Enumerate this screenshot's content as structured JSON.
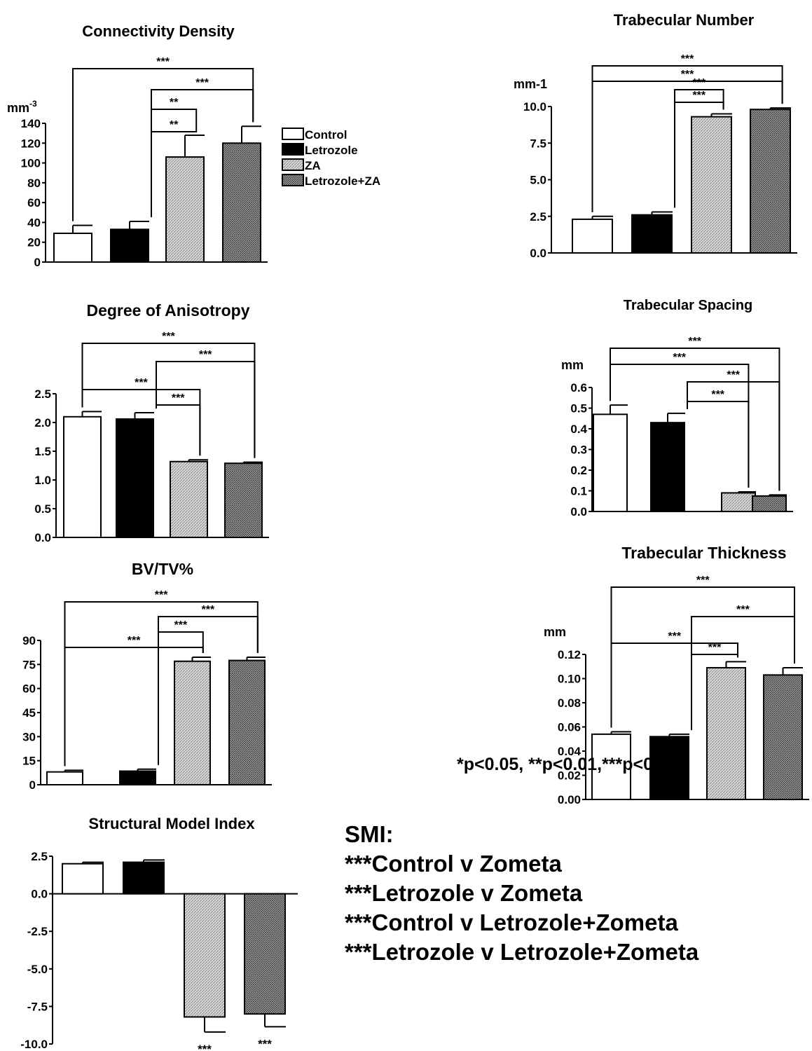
{
  "legend": [
    {
      "label": "Control",
      "fill": "white"
    },
    {
      "label": "Letrozole",
      "fill": "black"
    },
    {
      "label": "ZA",
      "fill": "light"
    },
    {
      "label": "Letrozole+ZA",
      "fill": "dark"
    }
  ],
  "colors": {
    "bar_black": "#000000",
    "bar_light": "#bdbdbd",
    "bar_dark": "#8a8a8a",
    "bar_white": "#ffffff"
  },
  "notes": {
    "smi_heading": "SMI:",
    "smi_lines": [
      "***Control v Zometa",
      "***Letrozole v Zometa",
      "***Control v Letrozole+Zometa",
      "***Letrozole v Letrozole+Zometa"
    ],
    "pvalue_note": "*p<0.05, **p<0.01,***p<0.001"
  },
  "chart_data": [
    {
      "id": "conn",
      "type": "bar",
      "title": "Connectivity Density",
      "ylabel": "mm-3",
      "ylim": [
        0,
        140
      ],
      "ticks": [
        "0",
        "20",
        "40",
        "60",
        "80",
        "100",
        "120",
        "140"
      ],
      "categories": [
        "Control",
        "Letrozole",
        "ZA",
        "Letrozole+ZA"
      ],
      "values": [
        29,
        33,
        106,
        120
      ],
      "errors": [
        8,
        8,
        22,
        17
      ],
      "sig": [
        {
          "from": 0,
          "to": 3,
          "label": "***"
        },
        {
          "from": 1,
          "to": 3,
          "label": "***"
        },
        {
          "from": 1,
          "to": 2,
          "label": "**"
        },
        {
          "from": 1,
          "to": 2,
          "label": "**"
        }
      ]
    },
    {
      "id": "trabnum",
      "type": "bar",
      "title": "Trabecular Number",
      "ylabel": "mm-1",
      "ylim": [
        0,
        10
      ],
      "ticks": [
        "0.0",
        "2.5",
        "5.0",
        "7.5",
        "10.0"
      ],
      "categories": [
        "Control",
        "Letrozole",
        "ZA",
        "Letrozole+ZA"
      ],
      "values": [
        2.3,
        2.6,
        9.3,
        9.8
      ],
      "errors": [
        0.2,
        0.2,
        0.2,
        0.1
      ],
      "sig": [
        {
          "from": 0,
          "to": 3,
          "label": "***"
        },
        {
          "from": 0,
          "to": 3,
          "label": "***"
        },
        {
          "from": 1,
          "to": 2,
          "label": "***"
        },
        {
          "from": 1,
          "to": 2,
          "label": "***"
        }
      ]
    },
    {
      "id": "doa",
      "type": "bar",
      "title": "Degree of Anisotropy",
      "ylabel": "",
      "ylim": [
        0,
        2.5
      ],
      "ticks": [
        "0.0",
        "0.5",
        "1.0",
        "1.5",
        "2.0",
        "2.5"
      ],
      "categories": [
        "Control",
        "Letrozole",
        "ZA",
        "Letrozole+ZA"
      ],
      "values": [
        2.1,
        2.06,
        1.32,
        1.29
      ],
      "errors": [
        0.09,
        0.11,
        0.03,
        0.02
      ],
      "sig": [
        {
          "from": 0,
          "to": 3,
          "label": "***"
        },
        {
          "from": 1,
          "to": 3,
          "label": "***"
        },
        {
          "from": 0,
          "to": 2,
          "label": "***"
        },
        {
          "from": 1,
          "to": 2,
          "label": "***"
        }
      ]
    },
    {
      "id": "trabspace",
      "type": "bar",
      "title": "Trabecular Spacing",
      "ylabel": "mm",
      "ylim": [
        0,
        0.6
      ],
      "ticks": [
        "0.0",
        "0.1",
        "0.2",
        "0.3",
        "0.4",
        "0.5",
        "0.6"
      ],
      "categories": [
        "Control",
        "Letrozole",
        "ZA",
        "Letrozole+ZA"
      ],
      "values": [
        0.47,
        0.43,
        0.09,
        0.075
      ],
      "errors": [
        0.045,
        0.045,
        0.005,
        0.005
      ],
      "sig": [
        {
          "from": 0,
          "to": 3,
          "label": "***"
        },
        {
          "from": 0,
          "to": 2,
          "label": "***"
        },
        {
          "from": 1,
          "to": 3,
          "label": "***"
        },
        {
          "from": 1,
          "to": 2,
          "label": "***"
        }
      ]
    },
    {
      "id": "bvtv",
      "type": "bar",
      "title": "BV/TV%",
      "ylabel": "",
      "ylim": [
        0,
        90
      ],
      "ticks": [
        "0",
        "15",
        "30",
        "45",
        "60",
        "75",
        "90"
      ],
      "categories": [
        "Control",
        "Letrozole",
        "ZA",
        "Letrozole+ZA"
      ],
      "values": [
        8,
        8.5,
        77,
        77.5
      ],
      "errors": [
        1,
        1.2,
        2.5,
        2
      ],
      "sig": [
        {
          "from": 0,
          "to": 3,
          "label": "***"
        },
        {
          "from": 1,
          "to": 3,
          "label": "***"
        },
        {
          "from": 1,
          "to": 2,
          "label": "***"
        },
        {
          "from": 0,
          "to": 2,
          "label": "***"
        }
      ]
    },
    {
      "id": "trabthick",
      "type": "bar",
      "title": "Trabecular Thickness",
      "ylabel": "mm",
      "ylim": [
        0,
        0.12
      ],
      "ticks": [
        "0.00",
        "0.02",
        "0.04",
        "0.06",
        "0.08",
        "0.10",
        "0.12"
      ],
      "categories": [
        "Control",
        "Letrozole",
        "ZA",
        "Letrozole+ZA"
      ],
      "values": [
        0.054,
        0.052,
        0.109,
        0.103
      ],
      "errors": [
        0.002,
        0.002,
        0.005,
        0.006
      ],
      "sig": [
        {
          "from": 0,
          "to": 3,
          "label": "***"
        },
        {
          "from": 1,
          "to": 3,
          "label": "***"
        },
        {
          "from": 0,
          "to": 2,
          "label": "***"
        },
        {
          "from": 1,
          "to": 2,
          "label": "***"
        }
      ]
    },
    {
      "id": "smi",
      "type": "bar",
      "title": "Structural Model Index",
      "ylabel": "",
      "ylim": [
        -10,
        2.5
      ],
      "ticks": [
        "-10.0",
        "-7.5",
        "-5.0",
        "-2.5",
        "0.0",
        "2.5"
      ],
      "categories": [
        "Control",
        "Letrozole",
        "ZA",
        "Letrozole+ZA"
      ],
      "values": [
        2.0,
        2.1,
        -8.2,
        -8.0
      ],
      "errors": [
        0.1,
        0.15,
        1.0,
        0.85
      ],
      "below_labels": [
        "",
        "",
        "***",
        "***"
      ]
    }
  ]
}
